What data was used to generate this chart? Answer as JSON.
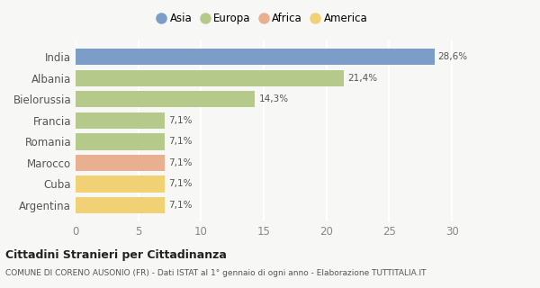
{
  "categories": [
    "India",
    "Albania",
    "Bielorussia",
    "Francia",
    "Romania",
    "Marocco",
    "Cuba",
    "Argentina"
  ],
  "values": [
    28.6,
    21.4,
    14.3,
    7.1,
    7.1,
    7.1,
    7.1,
    7.1
  ],
  "labels": [
    "28,6%",
    "21,4%",
    "14,3%",
    "7,1%",
    "7,1%",
    "7,1%",
    "7,1%",
    "7,1%"
  ],
  "bar_colors": [
    "#7b9dc7",
    "#b5c98a",
    "#b5c98a",
    "#b5c98a",
    "#b5c98a",
    "#e8b090",
    "#f0d275",
    "#f0d275"
  ],
  "legend": [
    {
      "label": "Asia",
      "color": "#7b9dc7"
    },
    {
      "label": "Europa",
      "color": "#b5c98a"
    },
    {
      "label": "Africa",
      "color": "#e8b090"
    },
    {
      "label": "America",
      "color": "#f0d275"
    }
  ],
  "xlim": [
    0,
    31
  ],
  "xticks": [
    0,
    5,
    10,
    15,
    20,
    25,
    30
  ],
  "title": "Cittadini Stranieri per Cittadinanza",
  "subtitle": "COMUNE DI CORENO AUSONIO (FR) - Dati ISTAT al 1° gennaio di ogni anno - Elaborazione TUTTITALIA.IT",
  "background_color": "#f7f7f5",
  "grid_color": "#ffffff",
  "bar_height": 0.78,
  "label_fontsize": 7.5,
  "ytick_fontsize": 8.5,
  "xtick_fontsize": 8.5
}
